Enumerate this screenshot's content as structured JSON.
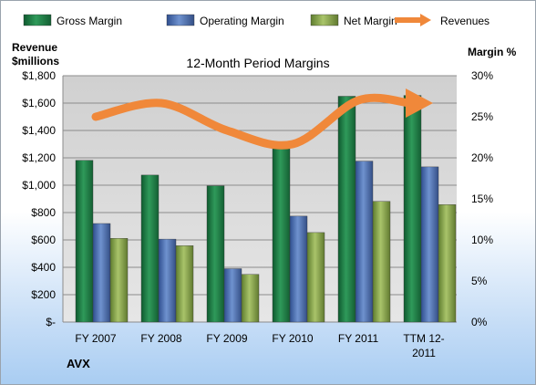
{
  "chart_data": {
    "type": "bar",
    "title": "12-Month Period Margins",
    "company": "AVX",
    "categories": [
      "FY 2007",
      "FY 2008",
      "FY 2009",
      "FY 2010",
      "FY 2011",
      "TTM 12-2011"
    ],
    "y_left": {
      "label_line1": "Revenue",
      "label_line2": "$millions",
      "min": 0,
      "max": 1800,
      "ticks": [
        "$-",
        "$200",
        "$400",
        "$600",
        "$800",
        "$1,000",
        "$1,200",
        "$1,400",
        "$1,600",
        "$1,800"
      ]
    },
    "y_right": {
      "label": "Margin %",
      "min": 0,
      "max": 30,
      "ticks": [
        "0%",
        "5%",
        "10%",
        "15%",
        "20%",
        "25%",
        "30%"
      ]
    },
    "series": [
      {
        "name": "Gross Margin",
        "axis": "right",
        "color": "#1e7b45",
        "values": [
          19.7,
          17.9,
          16.6,
          21.2,
          27.5,
          27.6
        ]
      },
      {
        "name": "Operating Margin",
        "axis": "right",
        "color": "#4a6fb0",
        "values": [
          12.0,
          10.1,
          6.5,
          12.9,
          19.6,
          18.9
        ]
      },
      {
        "name": "Net Margin",
        "axis": "right",
        "color": "#86a64a",
        "values": [
          10.2,
          9.3,
          5.8,
          10.9,
          14.7,
          14.3
        ]
      },
      {
        "name": "Revenues",
        "axis": "left",
        "type": "line",
        "color": "#f0883a",
        "values": [
          1500,
          1600,
          1400,
          1300,
          1620,
          1600
        ]
      }
    ],
    "legend": "top",
    "grid": true
  }
}
